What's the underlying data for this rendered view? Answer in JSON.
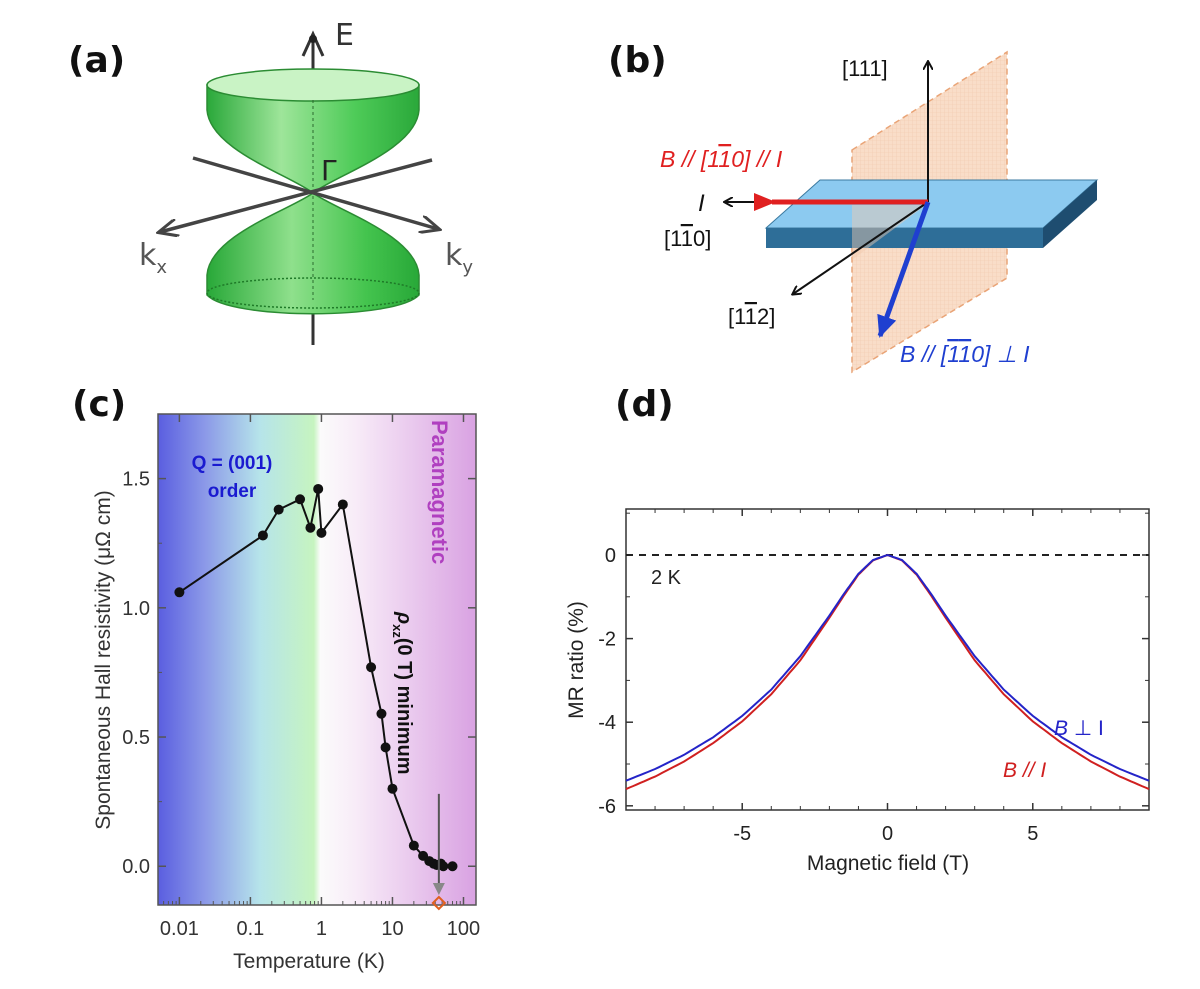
{
  "panels": {
    "a": {
      "label": "(a)",
      "energy_axis": "E",
      "gamma_point": "Γ",
      "kx_label": "k",
      "kx_sub": "x",
      "ky_label": "k",
      "ky_sub": "y",
      "colors": {
        "cone": "#3cc44c",
        "cone_light": "#b8f0b0",
        "outline": "#2e8b35"
      }
    },
    "b": {
      "label": "(b)",
      "dir_111": "[111]",
      "dir_1bar10_pre": "[1",
      "dir_1bar10_bar": "1",
      "dir_1bar10_post": "0]",
      "dir_11bar2_pre": "[1",
      "dir_11bar2_bar": "1",
      "dir_11bar2_post": "2]",
      "current_label": "I",
      "b_parallel_pre": "B // [1",
      "b_parallel_bar": "1",
      "b_parallel_post": "0] // I",
      "b_perp_pre": "B // [",
      "b_perp_bar1": "1",
      "b_perp_bar2": "1",
      "b_perp_post": "0]  ⊥  I",
      "colors": {
        "red": "#e02020",
        "blue": "#1f3fd0",
        "slab": "#8ecbee",
        "plane": "#f7d2b5"
      }
    },
    "c": {
      "label": "(c)"
    },
    "d": {
      "label": "(d)"
    }
  },
  "chart_data": [
    {
      "panel": "c",
      "type": "line",
      "xscale": "log",
      "xlabel": "Temperature (K)",
      "ylabel": "Spontaneous Hall resistivity (μΩ cm)",
      "xlim": [
        0.005,
        150
      ],
      "ylim": [
        -0.15,
        1.75
      ],
      "xticks": [
        0.01,
        0.1,
        1,
        10,
        100
      ],
      "xtick_labels": [
        "0.01",
        "0.1",
        "1",
        "10",
        "100"
      ],
      "yticks": [
        0.0,
        0.5,
        1.0,
        1.5
      ],
      "ytick_labels": [
        "0.0",
        "0.5",
        "1.0",
        "1.5"
      ],
      "region_ordered_line1": "Q = (001)",
      "region_ordered_line2": "order",
      "region_paramagnetic": "Paramagnetic",
      "annotation_prefix": "ρ",
      "annotation_sub": "xz",
      "annotation_suffix": "(0 T) minimum",
      "minimum_marker_x": 45,
      "series": [
        {
          "name": "Spontaneous Hall resistivity",
          "x": [
            0.01,
            0.15,
            0.25,
            0.5,
            0.7,
            0.9,
            1.0,
            2.0,
            5.0,
            7.0,
            8.0,
            10.0,
            20.0,
            27.0,
            33.0,
            38.0,
            42.0,
            48.0,
            52.0,
            70.0
          ],
          "y": [
            1.06,
            1.28,
            1.38,
            1.42,
            1.31,
            1.46,
            1.29,
            1.4,
            0.77,
            0.59,
            0.46,
            0.3,
            0.08,
            0.04,
            0.02,
            0.01,
            0.005,
            0.01,
            0.0,
            0.0
          ]
        }
      ],
      "colors": {
        "ordered": "#4a4ad8",
        "mid": "#c8f0c0",
        "para": "#d69ce0",
        "para_text": "#b040c0",
        "order_text": "#1a1ad0"
      }
    },
    {
      "panel": "d",
      "type": "line",
      "xlabel": "Magnetic field (T)",
      "ylabel": "MR ratio (%)",
      "xlim": [
        -9,
        9
      ],
      "ylim": [
        -6.1,
        1.1
      ],
      "xticks": [
        -5,
        0,
        5
      ],
      "xtick_labels": [
        "-5",
        "0",
        "5"
      ],
      "yticks": [
        0,
        -2,
        -4,
        -6
      ],
      "ytick_labels": [
        "0",
        "-2",
        "-4",
        "-6"
      ],
      "temperature_label": "2 K",
      "series": [
        {
          "name": "B ⊥ I",
          "color": "#2424c8",
          "x": [
            -9,
            -8,
            -7,
            -6,
            -5,
            -4,
            -3,
            -2,
            -1.5,
            -1,
            -0.5,
            0,
            0.5,
            1,
            1.5,
            2,
            3,
            4,
            5,
            6,
            7,
            8,
            9
          ],
          "y": [
            -5.4,
            -5.12,
            -4.78,
            -4.36,
            -3.85,
            -3.22,
            -2.42,
            -1.45,
            -0.93,
            -0.45,
            -0.12,
            0,
            -0.12,
            -0.45,
            -0.93,
            -1.45,
            -2.42,
            -3.22,
            -3.85,
            -4.36,
            -4.78,
            -5.12,
            -5.4
          ]
        },
        {
          "name": "B // I",
          "color": "#d02020",
          "x": [
            -9,
            -8,
            -7,
            -6,
            -5,
            -4,
            -3,
            -2,
            -1.5,
            -1,
            -0.5,
            0,
            0.5,
            1,
            1.5,
            2,
            3,
            4,
            5,
            6,
            7,
            8,
            9
          ],
          "y": [
            -5.6,
            -5.3,
            -4.94,
            -4.5,
            -3.98,
            -3.33,
            -2.52,
            -1.5,
            -0.97,
            -0.47,
            -0.13,
            0,
            -0.13,
            -0.47,
            -0.97,
            -1.5,
            -2.52,
            -3.33,
            -3.98,
            -4.5,
            -4.94,
            -5.3,
            -5.6
          ]
        }
      ],
      "legend_perp_pre": "B",
      "legend_perp_post": " ⊥ I",
      "legend_par_pre": "B",
      "legend_par_post": " // I"
    }
  ]
}
